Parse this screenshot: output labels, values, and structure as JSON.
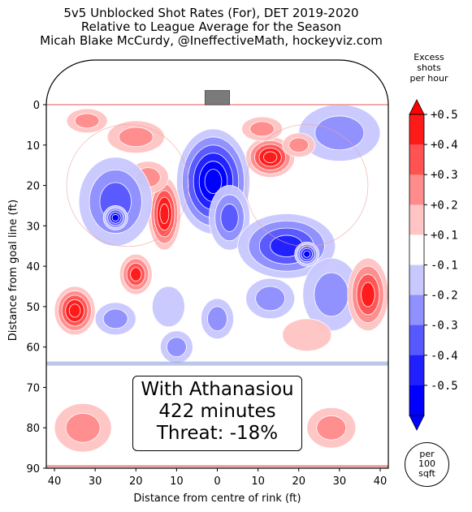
{
  "title_lines": [
    "5v5 Unblocked Shot Rates (For), DET 2019-2020",
    "Relative to League Average for the Season",
    "Micah Blake McCurdy, @IneffectiveMath, hockeyviz.com"
  ],
  "chart_data": {
    "type": "heatmap",
    "xlabel": "Distance from centre of rink (ft)",
    "ylabel": "Distance from goal line (ft)",
    "x_ticks": [
      "40",
      "30",
      "20",
      "10",
      "0",
      "10",
      "20",
      "30",
      "40"
    ],
    "y_ticks": [
      "0",
      "10",
      "20",
      "30",
      "40",
      "50",
      "60",
      "70",
      "80",
      "90"
    ],
    "xlim": [
      -42,
      42
    ],
    "ylim": [
      0,
      90
    ],
    "colorbar": {
      "title_lines": [
        "Excess",
        "shots",
        "per hour"
      ],
      "ticks": [
        "+0.5",
        "+0.4",
        "+0.3",
        "+0.2",
        "+0.1",
        "-0.1",
        "-0.2",
        "-0.3",
        "-0.4",
        "-0.5"
      ],
      "levels": [
        0.5,
        0.4,
        0.3,
        0.2,
        0.1,
        -0.1,
        -0.2,
        -0.3,
        -0.4,
        -0.5
      ],
      "colors": [
        "#ff1a1a",
        "#ff5252",
        "#ff8c8c",
        "#ffc4c4",
        "#ffffff",
        "#c8c8ff",
        "#9090ff",
        "#5858ff",
        "#2020ff",
        "#0000ff"
      ]
    },
    "blobs": [
      {
        "x": -1,
        "y": 19,
        "rx": 9,
        "ry": 13,
        "value": -0.6
      },
      {
        "x": 3,
        "y": 28,
        "rx": 5,
        "ry": 8,
        "value": -0.3
      },
      {
        "x": 13,
        "y": 13,
        "rx": 6,
        "ry": 5,
        "value": 0.5
      },
      {
        "x": 11,
        "y": 6,
        "rx": 5,
        "ry": 3,
        "value": 0.2
      },
      {
        "x": 17,
        "y": 35,
        "rx": 12,
        "ry": 8,
        "value": -0.4
      },
      {
        "x": 22,
        "y": 37,
        "rx": 3,
        "ry": 3,
        "value": -0.5
      },
      {
        "x": 28,
        "y": 47,
        "rx": 7,
        "ry": 9,
        "value": -0.2
      },
      {
        "x": 13,
        "y": 48,
        "rx": 6,
        "ry": 5,
        "value": -0.2
      },
      {
        "x": -13,
        "y": 27,
        "rx": 4,
        "ry": 9,
        "value": 0.45
      },
      {
        "x": -20,
        "y": 42,
        "rx": 4,
        "ry": 5,
        "value": 0.4
      },
      {
        "x": -17,
        "y": 18,
        "rx": 5,
        "ry": 4,
        "value": 0.2
      },
      {
        "x": -25,
        "y": 24,
        "rx": 9,
        "ry": 11,
        "value": -0.3
      },
      {
        "x": -25,
        "y": 28,
        "rx": 3,
        "ry": 3,
        "value": -0.5
      },
      {
        "x": -35,
        "y": 51,
        "rx": 5,
        "ry": 6,
        "value": 0.5
      },
      {
        "x": -25,
        "y": 53,
        "rx": 5,
        "ry": 4,
        "value": -0.2
      },
      {
        "x": 37,
        "y": 47,
        "rx": 5,
        "ry": 9,
        "value": 0.4
      },
      {
        "x": 30,
        "y": 7,
        "rx": 10,
        "ry": 7,
        "value": -0.2
      },
      {
        "x": 20,
        "y": 10,
        "rx": 4,
        "ry": 3,
        "value": 0.2
      },
      {
        "x": -20,
        "y": 8,
        "rx": 7,
        "ry": 4,
        "value": 0.2
      },
      {
        "x": -32,
        "y": 4,
        "rx": 5,
        "ry": 3,
        "value": 0.2
      },
      {
        "x": -12,
        "y": 50,
        "rx": 4,
        "ry": 5,
        "value": -0.15
      },
      {
        "x": -10,
        "y": 60,
        "rx": 4,
        "ry": 4,
        "value": -0.2
      },
      {
        "x": 0,
        "y": 53,
        "rx": 4,
        "ry": 5,
        "value": -0.2
      },
      {
        "x": 22,
        "y": 57,
        "rx": 6,
        "ry": 4,
        "value": 0.15
      },
      {
        "x": -33,
        "y": 80,
        "rx": 7,
        "ry": 6,
        "value": 0.2
      },
      {
        "x": 28,
        "y": 80,
        "rx": 6,
        "ry": 5,
        "value": 0.2
      }
    ]
  },
  "annotation": {
    "lines": [
      "With Athanasiou",
      "422 minutes",
      "Threat: -18%"
    ]
  },
  "unit_label_lines": [
    "per",
    "100",
    "sqft"
  ]
}
